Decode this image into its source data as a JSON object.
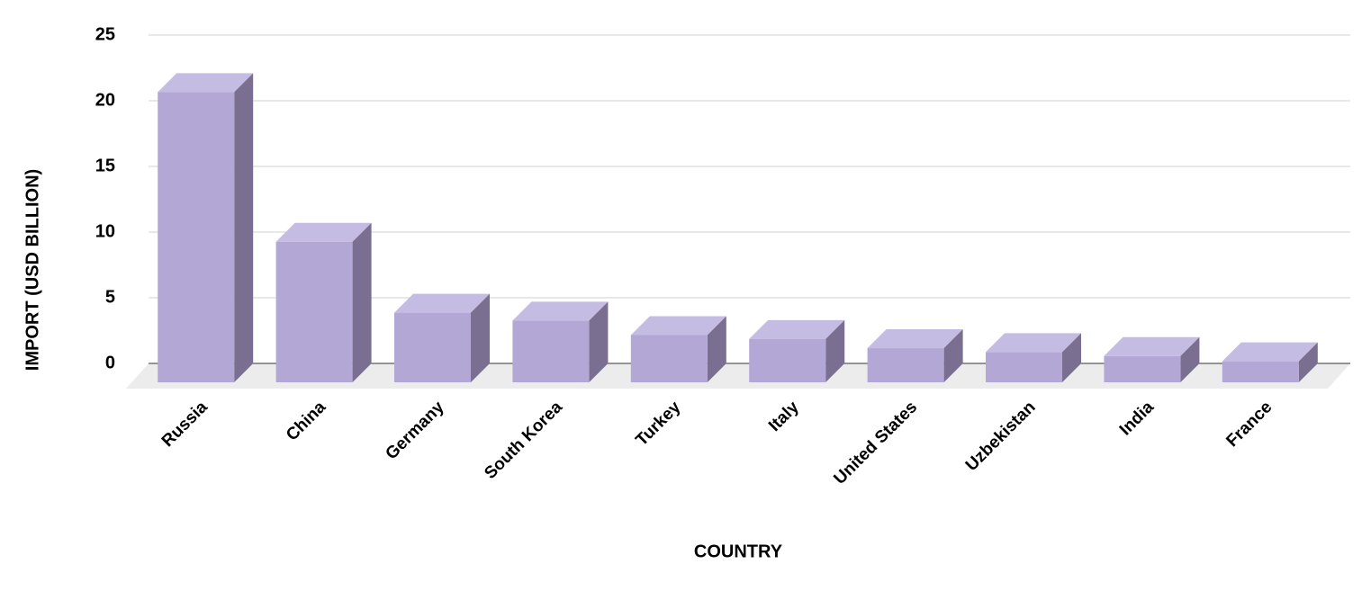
{
  "chart_data": {
    "type": "bar3d",
    "x_label": "COUNTRY",
    "y_label": "IMPORT (USD BILLION)",
    "categories": [
      "Russia",
      "China",
      "Germany",
      "South Korea",
      "Turkey",
      "Italy",
      "United States",
      "Uzbekistan",
      "India",
      "France"
    ],
    "values": [
      22.1,
      10.7,
      5.3,
      4.7,
      3.6,
      3.3,
      2.6,
      2.3,
      2.0,
      1.6
    ],
    "color": "#b3a8d5",
    "top_color": "#c5bce3",
    "side_color": "#7a6f91",
    "ylim": [
      0,
      25
    ],
    "yticks": [
      0,
      5,
      10,
      15,
      20,
      25
    ],
    "grid": true
  }
}
